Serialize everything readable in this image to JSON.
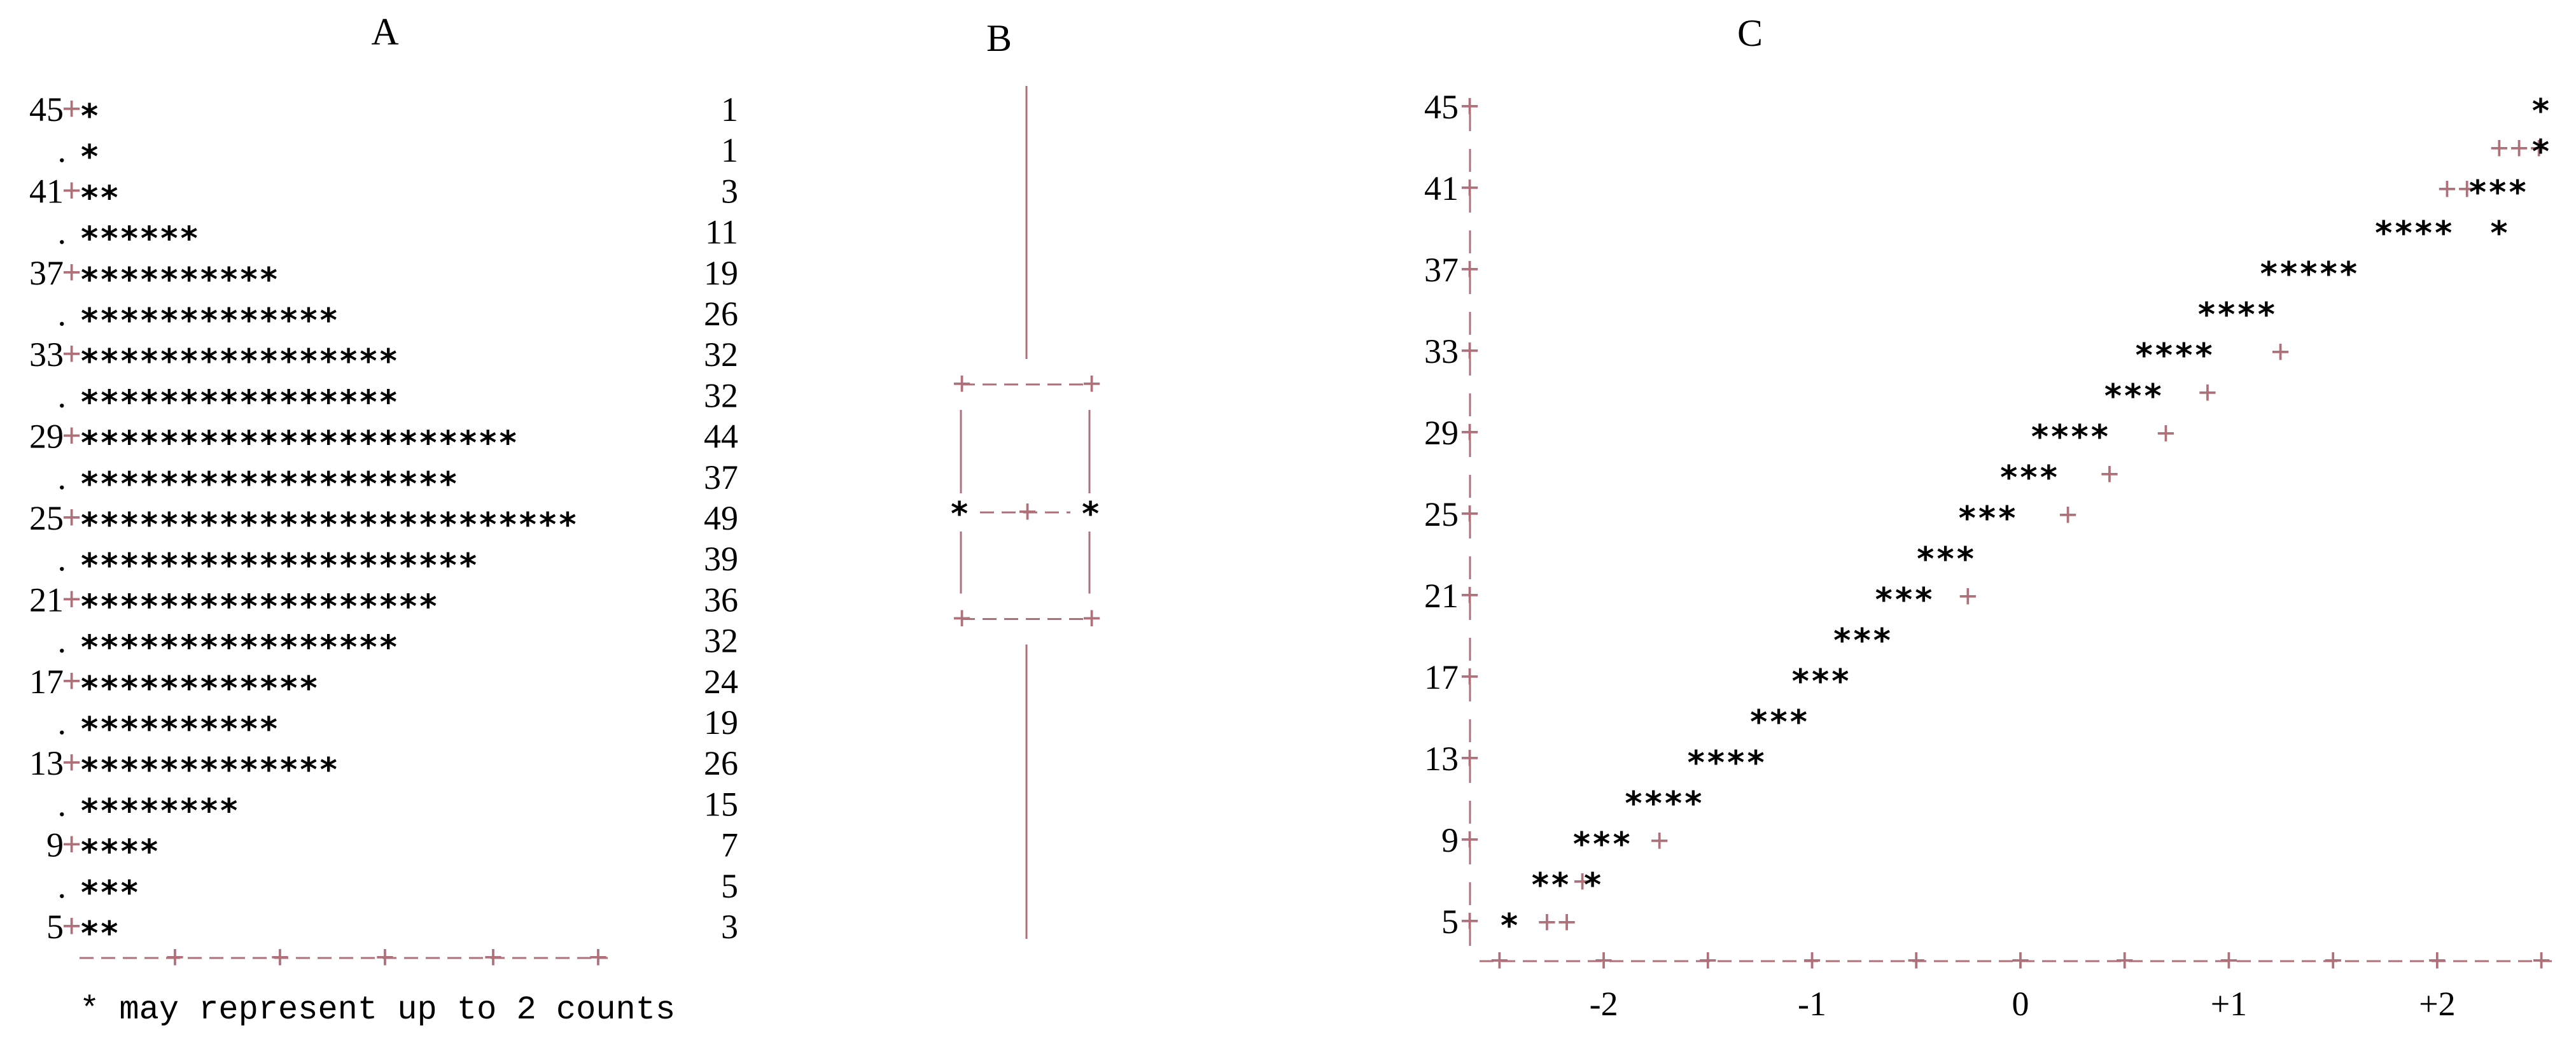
{
  "panels": {
    "a_label": "A",
    "b_label": "B",
    "c_label": "C"
  },
  "stem_footnote": "* may represent up to 2 counts",
  "chart_data": [
    {
      "panel": "A",
      "type": "stem-and-leaf",
      "rows": [
        {
          "stem": "45",
          "stars": 1,
          "count": "1"
        },
        {
          "stem": ".",
          "stars": 1,
          "count": "1"
        },
        {
          "stem": "41",
          "stars": 2,
          "count": "3"
        },
        {
          "stem": ".",
          "stars": 6,
          "count": "11"
        },
        {
          "stem": "37",
          "stars": 10,
          "count": "19"
        },
        {
          "stem": ".",
          "stars": 13,
          "count": "26"
        },
        {
          "stem": "33",
          "stars": 16,
          "count": "32"
        },
        {
          "stem": ".",
          "stars": 16,
          "count": "32"
        },
        {
          "stem": "29",
          "stars": 22,
          "count": "44"
        },
        {
          "stem": ".",
          "stars": 19,
          "count": "37"
        },
        {
          "stem": "25",
          "stars": 25,
          "count": "49"
        },
        {
          "stem": ".",
          "stars": 20,
          "count": "39"
        },
        {
          "stem": "21",
          "stars": 18,
          "count": "36"
        },
        {
          "stem": ".",
          "stars": 16,
          "count": "32"
        },
        {
          "stem": "17",
          "stars": 12,
          "count": "24"
        },
        {
          "stem": ".",
          "stars": 10,
          "count": "19"
        },
        {
          "stem": "13",
          "stars": 13,
          "count": "26"
        },
        {
          "stem": ".",
          "stars": 8,
          "count": "15"
        },
        {
          "stem": "9",
          "stars": 4,
          "count": "7"
        },
        {
          "stem": ".",
          "stars": 3,
          "count": "5"
        },
        {
          "stem": "5",
          "stars": 2,
          "count": "3"
        }
      ],
      "axis_string": "----+----+----+----+----+"
    },
    {
      "panel": "B",
      "type": "boxplot",
      "whisker_high": 45,
      "q3": 31,
      "median": 25,
      "mean_plus": 25,
      "q1": 20,
      "whisker_low": 5
    },
    {
      "panel": "C",
      "type": "scatter",
      "description_free": true,
      "ytick_labels": [
        "45",
        "41",
        "37",
        "33",
        "29",
        "25",
        "21",
        "17",
        "13",
        "9",
        "5"
      ],
      "ytick_values": [
        45,
        41,
        37,
        33,
        29,
        25,
        21,
        17,
        13,
        9,
        5
      ],
      "xtick_labels": [
        "-2",
        "-1",
        "0",
        "+1",
        "+2"
      ],
      "xtick_values": [
        -2,
        -1,
        0,
        1,
        2
      ],
      "xlim": [
        -2.55,
        2.55
      ],
      "ylim": [
        4,
        46
      ],
      "star_rows": [
        {
          "y": 45,
          "x": 2.5,
          "n": 1
        },
        {
          "y": 43,
          "x": 2.5,
          "n": 1
        },
        {
          "y": 41,
          "x": 2.3,
          "n": 3
        },
        {
          "y": 39,
          "x": 1.9,
          "n": 4
        },
        {
          "y": 39,
          "x": 2.3,
          "n": 1
        },
        {
          "y": 37,
          "x": 1.4,
          "n": 5
        },
        {
          "y": 35,
          "x": 1.05,
          "n": 4
        },
        {
          "y": 33,
          "x": 0.75,
          "n": 4
        },
        {
          "y": 31,
          "x": 0.55,
          "n": 3
        },
        {
          "y": 29,
          "x": 0.25,
          "n": 4
        },
        {
          "y": 27,
          "x": 0.05,
          "n": 3
        },
        {
          "y": 25,
          "x": -0.15,
          "n": 3
        },
        {
          "y": 23,
          "x": -0.35,
          "n": 3
        },
        {
          "y": 21,
          "x": -0.55,
          "n": 3
        },
        {
          "y": 19,
          "x": -0.75,
          "n": 3
        },
        {
          "y": 17,
          "x": -0.95,
          "n": 3
        },
        {
          "y": 15,
          "x": -1.15,
          "n": 3
        },
        {
          "y": 13,
          "x": -1.4,
          "n": 4
        },
        {
          "y": 11,
          "x": -1.7,
          "n": 4
        },
        {
          "y": 9,
          "x": -2.0,
          "n": 3
        },
        {
          "y": 7,
          "x": -2.25,
          "n": 2
        },
        {
          "y": 7,
          "x": -2.05,
          "n": 1
        },
        {
          "y": 5,
          "x": -2.45,
          "n": 1
        }
      ],
      "plus_marks": [
        {
          "y": 43,
          "x": 2.25,
          "n": 3
        },
        {
          "y": 41,
          "x": 2.0,
          "n": 2
        },
        {
          "y": 33,
          "x": 1.2,
          "n": 1
        },
        {
          "y": 31,
          "x": 0.85,
          "n": 1
        },
        {
          "y": 29,
          "x": 0.65,
          "n": 1
        },
        {
          "y": 27,
          "x": 0.38,
          "n": 1
        },
        {
          "y": 25,
          "x": 0.18,
          "n": 1
        },
        {
          "y": 21,
          "x": -0.3,
          "n": 1
        },
        {
          "y": 9,
          "x": -1.78,
          "n": 1
        },
        {
          "y": 7,
          "x": -2.15,
          "n": 1
        },
        {
          "y": 5,
          "x": -2.32,
          "n": 2
        }
      ]
    }
  ]
}
